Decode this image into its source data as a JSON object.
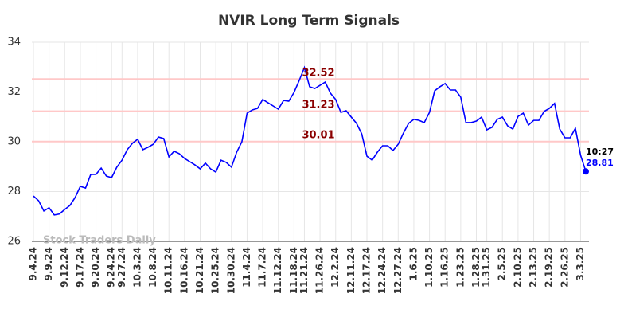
{
  "chart_data": {
    "type": "line",
    "title": "NVIR Long Term Signals",
    "watermark": "Stock Traders Daily",
    "categories": [
      "9.4.24",
      null,
      null,
      "9.9.24",
      null,
      null,
      "9.12.24",
      null,
      null,
      "9.17.24",
      null,
      null,
      "9.20.24",
      null,
      null,
      "9.24.24",
      null,
      "9.27.24",
      null,
      null,
      "10.3.24",
      null,
      null,
      "10.8.24",
      null,
      null,
      "10.11.24",
      null,
      null,
      "10.16.24",
      null,
      null,
      "10.21.24",
      null,
      null,
      "10.25.24",
      null,
      null,
      "10.30.24",
      null,
      null,
      "11.4.24",
      null,
      null,
      "11.7.24",
      null,
      null,
      "11.12.24",
      null,
      null,
      "11.18.24",
      null,
      "11.21.24",
      null,
      null,
      "11.26.24",
      null,
      null,
      "12.2.24",
      null,
      null,
      "12.11.24",
      null,
      null,
      "12.17.24",
      null,
      null,
      "12.24.24",
      null,
      null,
      "12.27.24",
      null,
      null,
      "1.6.25",
      null,
      null,
      "1.10.25",
      null,
      null,
      "1.16.25",
      null,
      null,
      "1.23.25",
      null,
      null,
      "1.28.25",
      null,
      "1.31.25",
      null,
      null,
      "2.5.25",
      null,
      null,
      "2.10.25",
      null,
      null,
      "2.13.25",
      null,
      null,
      "2.19.25",
      null,
      null,
      "2.26.25",
      null,
      null,
      "3.3.25",
      null
    ],
    "series": [
      {
        "color": "#0000ff",
        "values": [
          27.82,
          27.63,
          27.22,
          27.35,
          27.06,
          27.1,
          27.28,
          27.44,
          27.76,
          28.21,
          28.14,
          28.69,
          28.69,
          28.94,
          28.62,
          28.56,
          28.98,
          29.26,
          29.68,
          29.94,
          30.1,
          29.68,
          29.78,
          29.9,
          30.19,
          30.13,
          29.39,
          29.62,
          29.52,
          29.33,
          29.2,
          29.07,
          28.91,
          29.14,
          28.91,
          28.78,
          29.26,
          29.17,
          28.98,
          29.58,
          30.0,
          31.15,
          31.28,
          31.34,
          31.7,
          31.57,
          31.44,
          31.31,
          31.66,
          31.63,
          31.98,
          32.46,
          32.98,
          32.21,
          32.14,
          32.27,
          32.4,
          31.95,
          31.7,
          31.18,
          31.25,
          30.99,
          30.74,
          30.32,
          29.42,
          29.26,
          29.58,
          29.84,
          29.84,
          29.65,
          29.9,
          30.35,
          30.74,
          30.9,
          30.86,
          30.77,
          31.18,
          32.05,
          32.21,
          32.34,
          32.08,
          32.08,
          31.79,
          30.77,
          30.77,
          30.83,
          30.99,
          30.48,
          30.58,
          30.9,
          30.99,
          30.64,
          30.51,
          31.02,
          31.15,
          30.67,
          30.86,
          30.86,
          31.22,
          31.34,
          31.54,
          30.51,
          30.16,
          30.16,
          30.54,
          29.46,
          28.81
        ]
      }
    ],
    "signal_lines": [
      32.52,
      31.23,
      30.01
    ],
    "signal_color": "#ffc8c8",
    "signal_label_color": "#8b0000",
    "last_time": "10:27",
    "ylim": [
      26,
      34
    ],
    "yticks": [
      26,
      28,
      30,
      32,
      34
    ],
    "grid": true
  }
}
